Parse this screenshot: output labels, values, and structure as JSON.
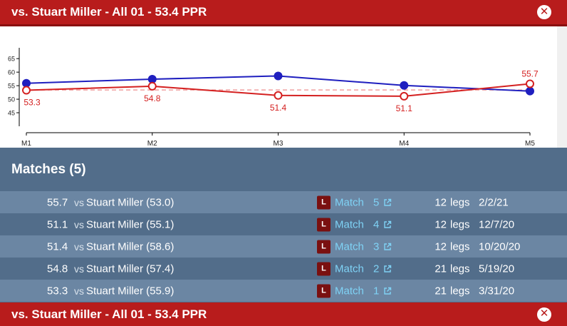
{
  "header": {
    "title": "vs. Stuart Miller - All 01 - 53.4 PPR",
    "close_icon": "close-circle-icon"
  },
  "footer": {
    "title": "vs. Stuart Miller - All 01 - 53.4 PPR",
    "close_icon": "close-circle-icon"
  },
  "chart_data": {
    "type": "line",
    "categories": [
      "M1",
      "M2",
      "M3",
      "M4",
      "M5"
    ],
    "y_ticks": [
      "45",
      "50",
      "55",
      "60",
      "65"
    ],
    "ylim": [
      40,
      69
    ],
    "series": [
      {
        "values": [
          55.9,
          57.4,
          58.6,
          55.1,
          53.0
        ],
        "color": "#1f1fbf",
        "marker": "filled-circle"
      },
      {
        "values": [
          53.3,
          54.8,
          51.4,
          51.1,
          55.7
        ],
        "color": "#d42020",
        "marker": "hollow-circle",
        "labels": [
          "53.3",
          "54.8",
          "51.4",
          "51.1",
          "55.7"
        ]
      }
    ],
    "reference_line": {
      "value": 53.4,
      "color": "#f0a0a0",
      "style": "dashed"
    }
  },
  "matches": {
    "title": "Matches (5)",
    "vs_label": "vs",
    "badge": "L",
    "match_label": "Match",
    "legs_label": "legs",
    "rows": [
      {
        "avg": "55.7",
        "opponent": "Stuart Miller (53.0)",
        "match_no": "5",
        "legs": "12",
        "date": "2/2/21"
      },
      {
        "avg": "51.1",
        "opponent": "Stuart Miller (55.1)",
        "match_no": "4",
        "legs": "12",
        "date": "12/7/20"
      },
      {
        "avg": "51.4",
        "opponent": "Stuart Miller (58.6)",
        "match_no": "3",
        "legs": "12",
        "date": "10/20/20"
      },
      {
        "avg": "54.8",
        "opponent": "Stuart Miller (57.4)",
        "match_no": "2",
        "legs": "21",
        "date": "5/19/20"
      },
      {
        "avg": "53.3",
        "opponent": "Stuart Miller (55.9)",
        "match_no": "1",
        "legs": "21",
        "date": "3/31/20"
      }
    ],
    "external_icon": "external-link-icon"
  }
}
